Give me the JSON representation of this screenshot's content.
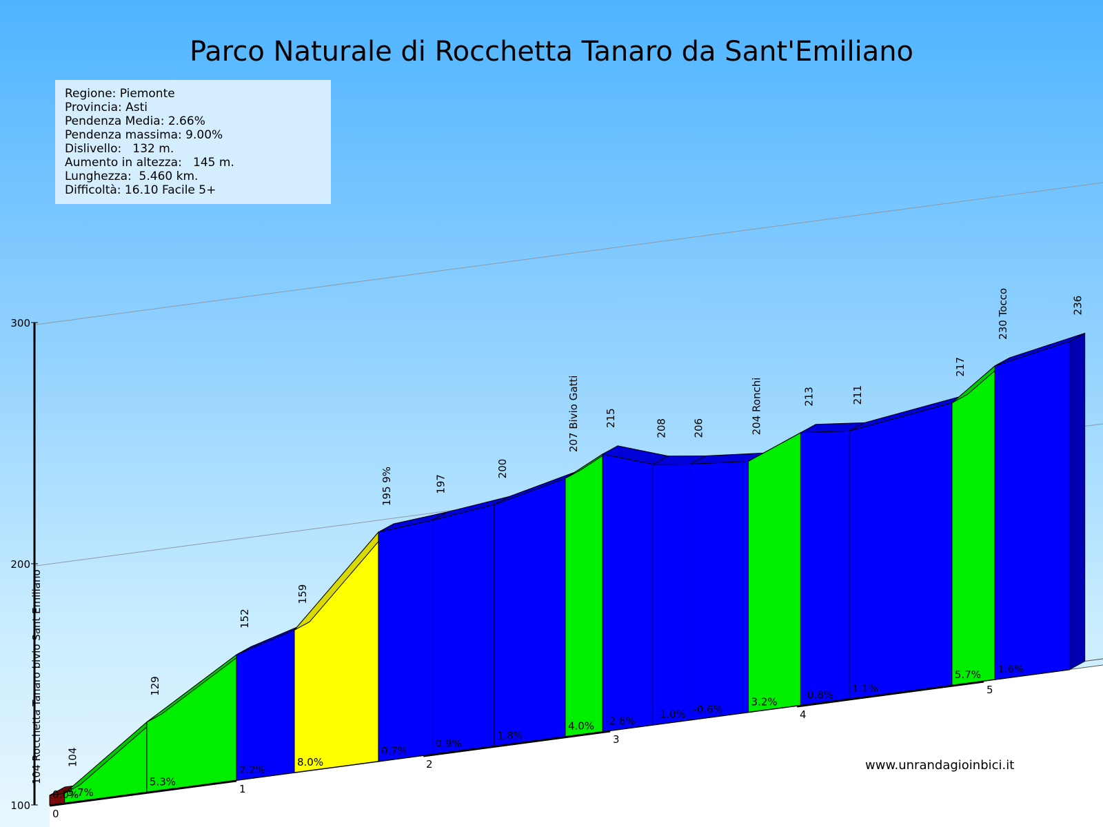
{
  "title": "Parco Naturale di Rocchetta Tanaro da Sant'Emiliano",
  "info": [
    "Regione: Piemonte",
    "Provincia: Asti",
    "Pendenza Media: 2.66%",
    "Pendenza massima: 9.00%",
    "Dislivello:   132 m.",
    "Aumento in altezza:   145 m.",
    "Lunghezza:  5.460 km.",
    "Difficoltà: 16.10 Facile 5+"
  ],
  "website": "www.unrandagioinbici.it",
  "colors": {
    "flat": "#7a0a0a",
    "easy": "#0000ff",
    "medium": "#00ee00",
    "hard": "#ffff00",
    "sky_top": "#4fb4ff"
  },
  "chart_data": {
    "type": "area",
    "subtype": "elevation-profile",
    "x_unit": "km",
    "y_unit": "m",
    "ylim": [
      100,
      300
    ],
    "yticks": [
      100,
      200,
      300
    ],
    "xticks": [
      0,
      1,
      2,
      3,
      4,
      5
    ],
    "points": [
      {
        "km": 0.0,
        "alt": 104,
        "label": "104 Rocchetta Tanaro bivio Sant Emiliano"
      },
      {
        "km": 0.08,
        "alt": 104,
        "label": "104"
      },
      {
        "km": 0.52,
        "alt": 129,
        "label": "129"
      },
      {
        "km": 1.0,
        "alt": 152,
        "label": "152"
      },
      {
        "km": 1.31,
        "alt": 159,
        "label": "159"
      },
      {
        "km": 1.76,
        "alt": 195,
        "label": "195 9%"
      },
      {
        "km": 2.05,
        "alt": 197,
        "label": "197"
      },
      {
        "km": 2.38,
        "alt": 200,
        "label": "200"
      },
      {
        "km": 2.76,
        "alt": 207,
        "label": "207 Bivio Gatti"
      },
      {
        "km": 2.96,
        "alt": 215,
        "label": "215"
      },
      {
        "km": 3.23,
        "alt": 208,
        "label": "208"
      },
      {
        "km": 3.43,
        "alt": 206,
        "label": "206"
      },
      {
        "km": 3.74,
        "alt": 204,
        "label": "204 Ronchi"
      },
      {
        "km": 4.02,
        "alt": 213,
        "label": "213"
      },
      {
        "km": 4.28,
        "alt": 211,
        "label": "211"
      },
      {
        "km": 4.83,
        "alt": 217,
        "label": "217"
      },
      {
        "km": 5.06,
        "alt": 230,
        "label": "230 Tocco"
      },
      {
        "km": 5.46,
        "alt": 236,
        "label": "236"
      }
    ],
    "segments": [
      {
        "grade": "0.0%",
        "color": "#7a0a0a"
      },
      {
        "grade": "5.7%",
        "color": "#00ee00"
      },
      {
        "grade": "5.3%",
        "color": "#00ee00"
      },
      {
        "grade": "2.2%",
        "color": "#0000ff"
      },
      {
        "grade": "8.0%",
        "color": "#ffff00"
      },
      {
        "grade": "0.7%",
        "color": "#0000ff"
      },
      {
        "grade": "0.9%",
        "color": "#0000ff"
      },
      {
        "grade": "1.8%",
        "color": "#0000ff"
      },
      {
        "grade": "4.0%",
        "color": "#00ee00"
      },
      {
        "grade": "-2.6%",
        "color": "#0000ff"
      },
      {
        "grade": "-1.0%",
        "color": "#0000ff"
      },
      {
        "grade": "-0.6%",
        "color": "#0000ff"
      },
      {
        "grade": "3.2%",
        "color": "#00ee00"
      },
      {
        "grade": "-0.8%",
        "color": "#0000ff"
      },
      {
        "grade": "1.1%",
        "color": "#0000ff"
      },
      {
        "grade": "5.7%",
        "color": "#00ee00"
      },
      {
        "grade": "1.6%",
        "color": "#0000ff"
      }
    ]
  }
}
